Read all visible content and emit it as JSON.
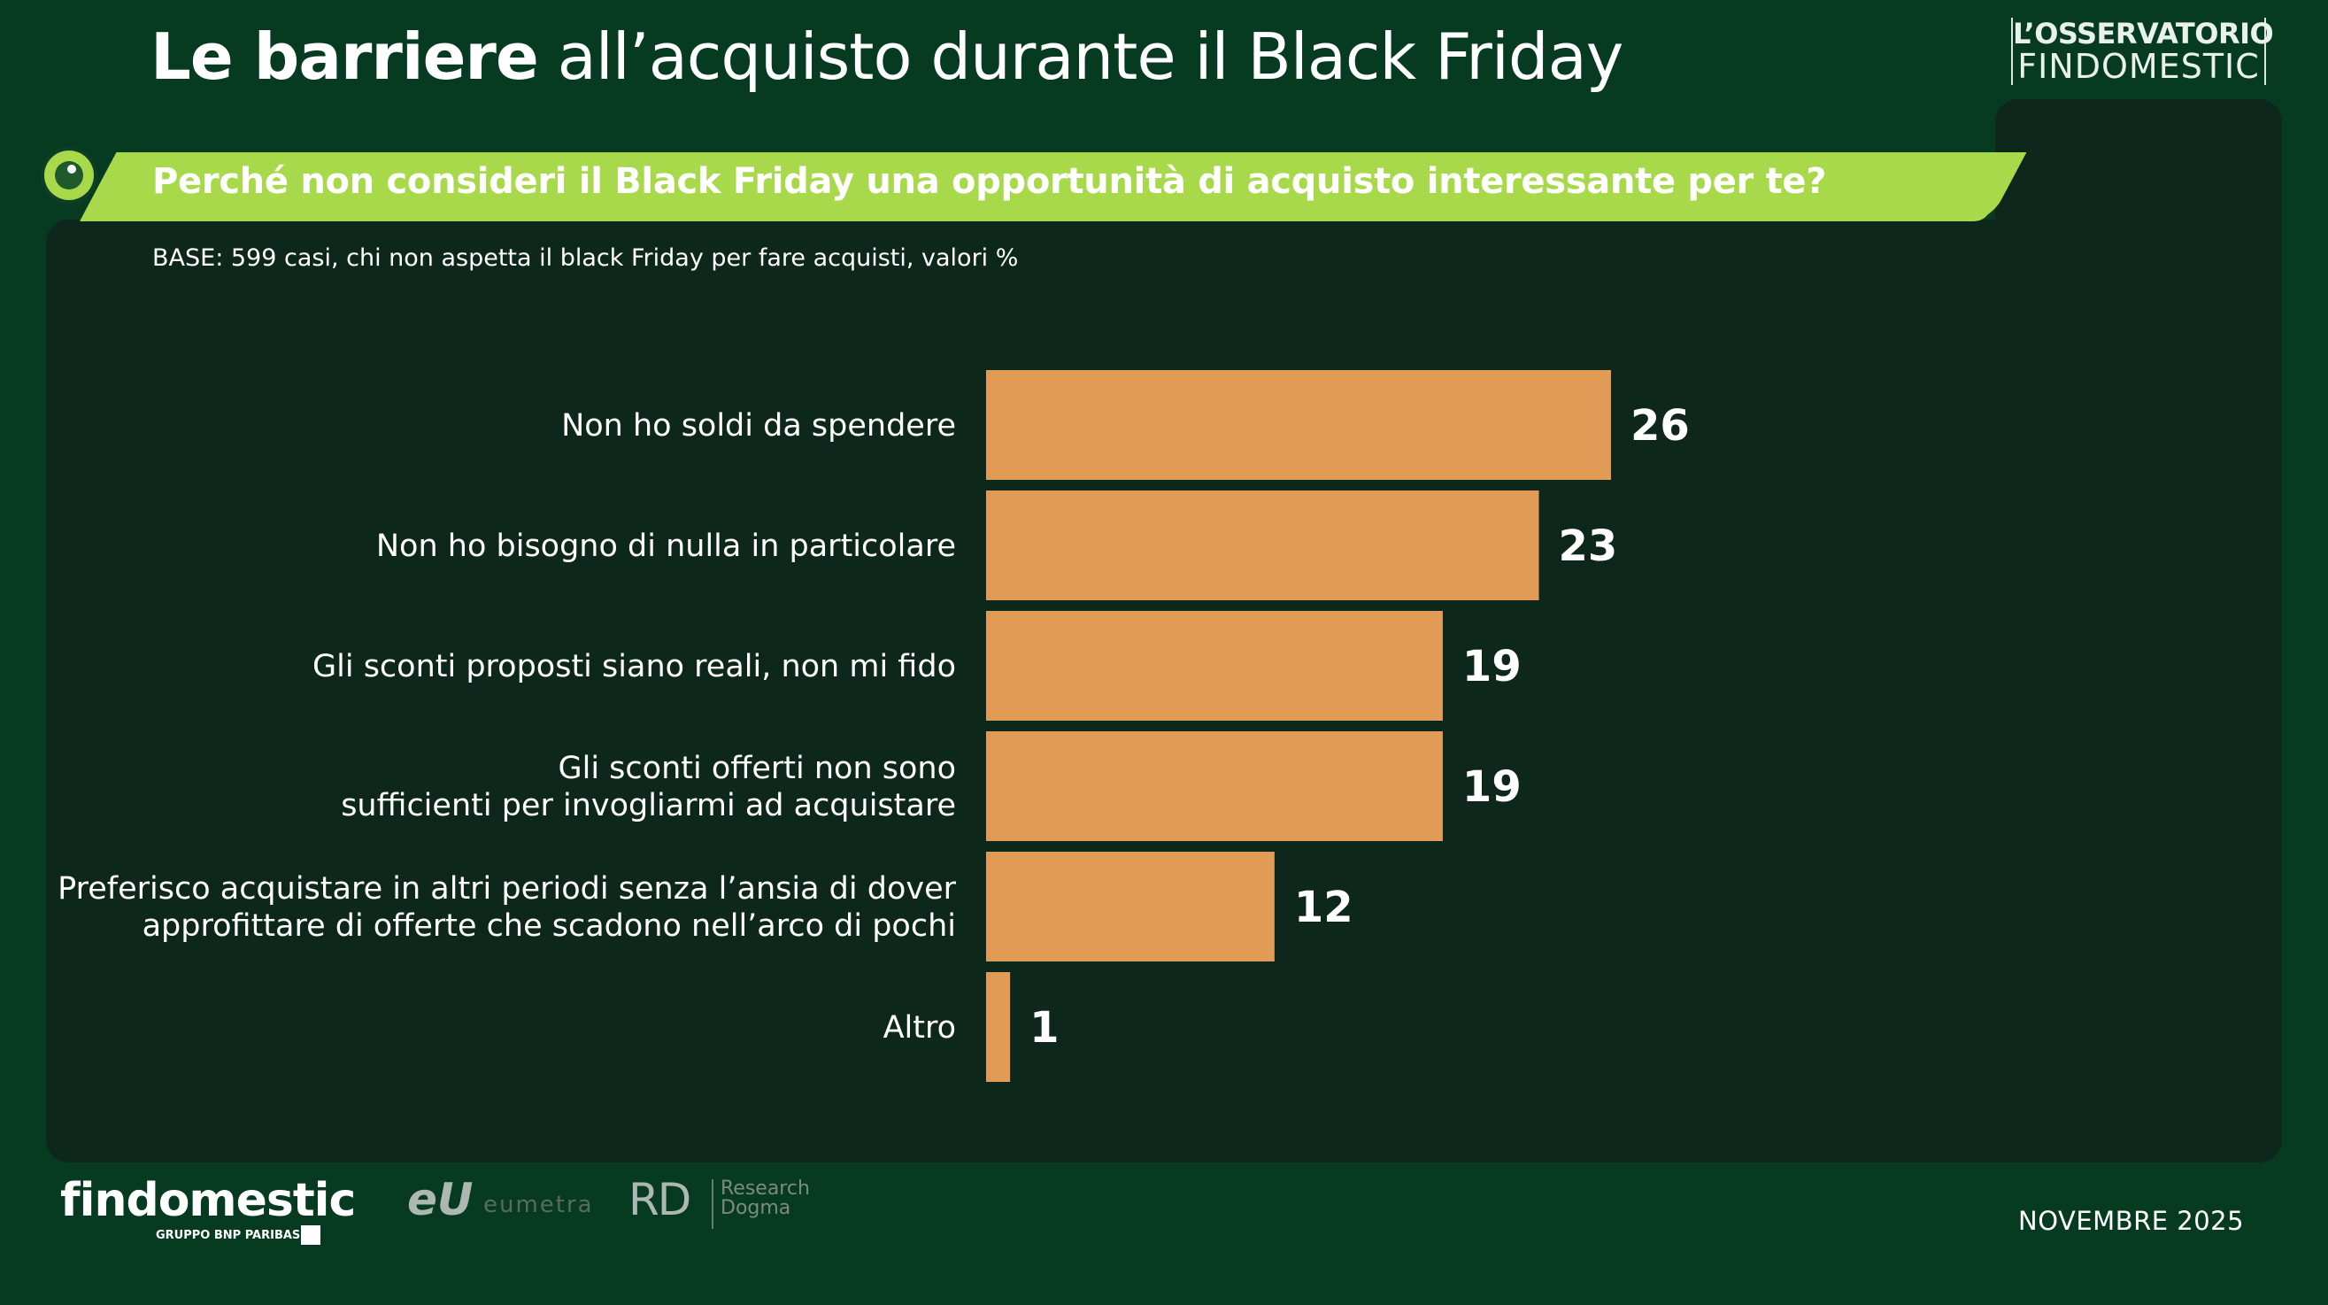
{
  "header": {
    "title_bold": "Le barriere",
    "title_rest": "all’acquisto durante il Black Friday",
    "brand_line1": "L’OSSERVATORIO",
    "brand_line2": "FINDOMESTIC"
  },
  "question": "Perché non consideri il Black Friday una opportunità di acquisto interessante per te?",
  "base_note": "BASE: 599 casi, chi non aspetta il black Friday per fare acquisti, valori %",
  "colors": {
    "background": "#063b22",
    "panel": "#0e271c",
    "accent": "#a8d94a",
    "bar": "#e29b57",
    "text": "#ffffff"
  },
  "chart_data": {
    "type": "bar",
    "orientation": "horizontal",
    "categories": [
      [
        "Non ho soldi da spendere"
      ],
      [
        "Non ho bisogno di nulla in particolare"
      ],
      [
        "Gli sconti proposti siano reali, non mi fido"
      ],
      [
        "Gli sconti offerti non sono",
        "sufficienti per invogliarmi ad acquistare"
      ],
      [
        "Preferisco acquistare in altri periodi senza l’ansia di dover",
        "approfittare di offerte che scadono nell’arco di pochi"
      ],
      [
        "Altro"
      ]
    ],
    "values": [
      26,
      23,
      19,
      19,
      12,
      1
    ],
    "value_labels": [
      "26",
      "23",
      "19",
      "19",
      "12",
      "1"
    ],
    "unit": "%",
    "xlim": [
      0,
      26
    ],
    "grid": false,
    "legend": "none"
  },
  "footer": {
    "logo_main": "findomestic",
    "logo_sub": "GRUPPO BNP PARIBAS",
    "partner1_mark": "eU",
    "partner1_name": "eumetra",
    "partner2_mark": "RD",
    "partner2_name_1": "Research",
    "partner2_name_2": "Dogma",
    "date": "NOVEMBRE 2025"
  }
}
